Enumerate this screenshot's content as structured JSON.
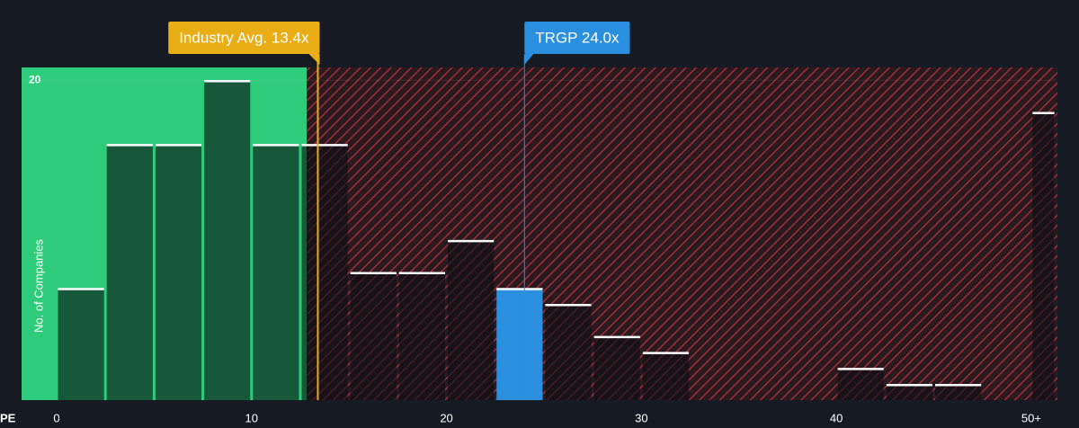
{
  "chart_data": {
    "type": "histogram",
    "x_label": "PE",
    "y_label": "No. of Companies",
    "bins": [
      0,
      2.5,
      5,
      7.5,
      10,
      12.5,
      15,
      17.5,
      20,
      22.5,
      25,
      27.5,
      30,
      32.5,
      35,
      37.5,
      40,
      42.5,
      45,
      47.5,
      50,
      51.25
    ],
    "values": [
      7,
      16,
      16,
      20,
      16,
      16,
      8,
      8,
      10,
      7,
      6,
      4,
      3,
      0,
      0,
      0,
      2,
      1,
      1,
      0,
      18
    ],
    "highlight_index": 9,
    "highlight_color": "#2b8fe0",
    "xlim": [
      0,
      51.25
    ],
    "xticks": [
      0,
      10,
      20,
      30,
      40,
      {
        "value": 50,
        "label": "50+"
      }
    ],
    "ylim": [
      0,
      20.8
    ],
    "yticks": [
      20
    ],
    "annotations": [
      {
        "text": "Industry Avg. 13.4x",
        "value": 13.4,
        "color": "#e9ad16"
      },
      {
        "text": "TRGP 24.0x",
        "value": 24.0,
        "color": "#2b8fe0"
      }
    ]
  }
}
